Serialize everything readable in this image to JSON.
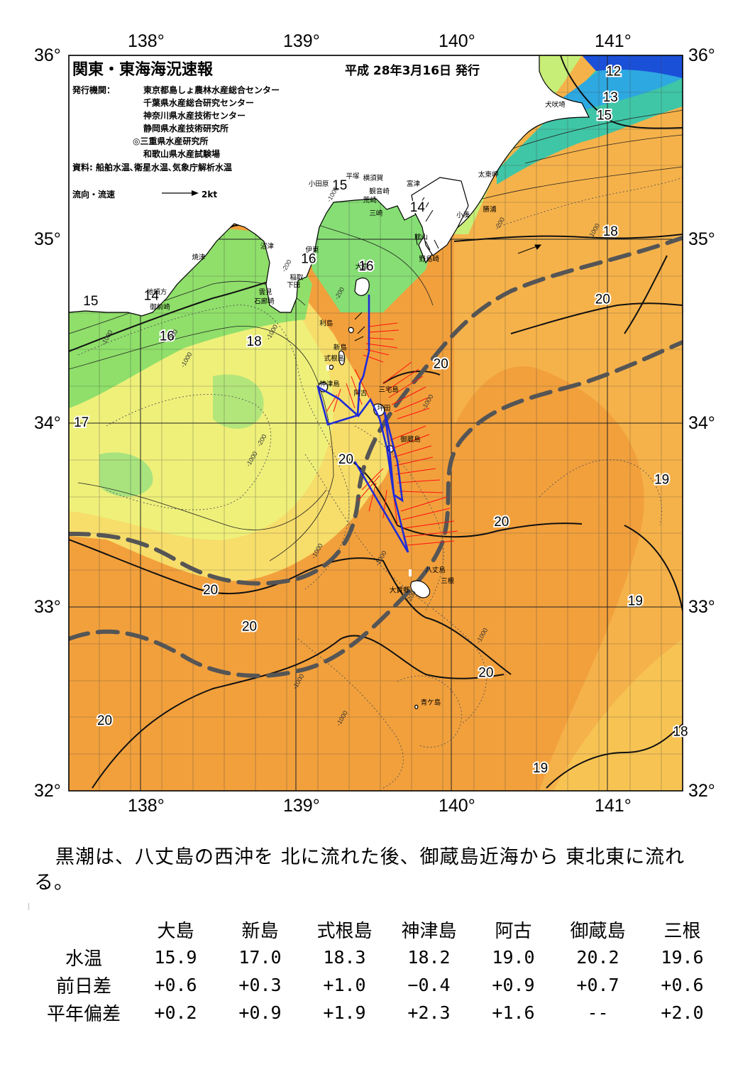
{
  "header": {
    "title": "関東・東海海況速報",
    "issue_date": "平成 28年3月16日 発行",
    "publisher_label": "発行機関：",
    "publishers": [
      "東京都島しょ農林水産総合センター",
      "千葉県水産総合研究センター",
      "神奈川県水産技術センター",
      "静岡県水産技術研究所",
      "◎三重県水産研究所",
      "和歌山県水産試験場"
    ],
    "source": "資料: 船舶水温､衛星水温､気象庁解析水温",
    "current_legend": "流向・流速",
    "current_scale": "2kt"
  },
  "axes": {
    "lon_ticks": [
      "138°",
      "139°",
      "140°",
      "141°"
    ],
    "lat_ticks": [
      "36°",
      "35°",
      "34°",
      "33°",
      "32°"
    ]
  },
  "isotherm_labels": [
    {
      "text": "12",
      "lon": 141.04,
      "lat": 35.89
    },
    {
      "text": "13",
      "lon": 141.02,
      "lat": 35.75
    },
    {
      "text": "15",
      "lon": 140.98,
      "lat": 35.65
    },
    {
      "text": "14",
      "lon": 139.78,
      "lat": 35.15
    },
    {
      "text": "15",
      "lon": 139.28,
      "lat": 35.27
    },
    {
      "text": "18",
      "lon": 141.02,
      "lat": 35.02
    },
    {
      "text": "16",
      "lon": 139.08,
      "lat": 34.87
    },
    {
      "text": "16",
      "lon": 139.45,
      "lat": 34.83
    },
    {
      "text": "15",
      "lon": 137.68,
      "lat": 34.64
    },
    {
      "text": "14",
      "lon": 138.07,
      "lat": 34.67
    },
    {
      "text": "16",
      "lon": 138.17,
      "lat": 34.45
    },
    {
      "text": "18",
      "lon": 138.73,
      "lat": 34.42
    },
    {
      "text": "20",
      "lon": 140.97,
      "lat": 34.65
    },
    {
      "text": "20",
      "lon": 139.93,
      "lat": 34.3
    },
    {
      "text": "17",
      "lon": 137.62,
      "lat": 33.98
    },
    {
      "text": "20",
      "lon": 139.32,
      "lat": 33.78
    },
    {
      "text": "19",
      "lon": 141.35,
      "lat": 33.67
    },
    {
      "text": "20",
      "lon": 140.32,
      "lat": 33.44
    },
    {
      "text": "20",
      "lon": 138.45,
      "lat": 33.07
    },
    {
      "text": "19",
      "lon": 141.18,
      "lat": 33.01
    },
    {
      "text": "20",
      "lon": 138.7,
      "lat": 32.87
    },
    {
      "text": "20",
      "lon": 140.22,
      "lat": 32.62
    },
    {
      "text": "20",
      "lon": 137.77,
      "lat": 32.36
    },
    {
      "text": "18",
      "lon": 141.47,
      "lat": 32.3
    },
    {
      "text": "19",
      "lon": 140.57,
      "lat": 32.1
    }
  ],
  "bathymetry_labels": [
    {
      "text": "-1000",
      "lon": 140.9,
      "lat": 35.0
    },
    {
      "text": "-200",
      "lon": 140.3,
      "lat": 35.05
    },
    {
      "text": "-1000",
      "lon": 139.22,
      "lat": 35.2
    },
    {
      "text": "-200",
      "lon": 138.93,
      "lat": 34.82
    },
    {
      "text": "-200",
      "lon": 138.2,
      "lat": 34.44
    },
    {
      "text": "-1000",
      "lon": 138.83,
      "lat": 34.45
    },
    {
      "text": "-1000",
      "lon": 138.28,
      "lat": 34.3
    },
    {
      "text": "-1000",
      "lon": 137.77,
      "lat": 34.42
    },
    {
      "text": "-200",
      "lon": 139.27,
      "lat": 34.67
    },
    {
      "text": "-1000",
      "lon": 139.83,
      "lat": 34.07
    },
    {
      "text": "-200",
      "lon": 138.77,
      "lat": 33.87
    },
    {
      "text": "-1000",
      "lon": 138.7,
      "lat": 33.76
    },
    {
      "text": "-1000",
      "lon": 139.12,
      "lat": 33.26
    },
    {
      "text": "-1000",
      "lon": 139.53,
      "lat": 33.22
    },
    {
      "text": "-200",
      "lon": 139.73,
      "lat": 33.02
    },
    {
      "text": "-1000",
      "lon": 140.18,
      "lat": 32.8
    },
    {
      "text": "-1000",
      "lon": 139.0,
      "lat": 32.55
    },
    {
      "text": "-1000",
      "lon": 139.28,
      "lat": 32.35
    }
  ],
  "place_names": [
    {
      "text": "犬吠埼",
      "lon": 140.6,
      "lat": 35.72
    },
    {
      "text": "小田原",
      "lon": 139.08,
      "lat": 35.29
    },
    {
      "text": "平塚",
      "lon": 139.32,
      "lat": 35.33
    },
    {
      "text": "横須賀",
      "lon": 139.43,
      "lat": 35.32
    },
    {
      "text": "観音崎",
      "lon": 139.47,
      "lat": 35.25
    },
    {
      "text": "富津",
      "lon": 139.71,
      "lat": 35.29
    },
    {
      "text": "太東岬",
      "lon": 140.17,
      "lat": 35.34
    },
    {
      "text": "荒崎",
      "lon": 139.43,
      "lat": 35.2
    },
    {
      "text": "勝浦",
      "lon": 140.2,
      "lat": 35.15
    },
    {
      "text": "三崎",
      "lon": 139.47,
      "lat": 35.13
    },
    {
      "text": "小湊",
      "lon": 140.03,
      "lat": 35.12
    },
    {
      "text": "館山",
      "lon": 139.76,
      "lat": 35.0
    },
    {
      "text": "沼津",
      "lon": 138.77,
      "lat": 34.95
    },
    {
      "text": "伊東",
      "lon": 139.06,
      "lat": 34.93
    },
    {
      "text": "焼津",
      "lon": 138.33,
      "lat": 34.89
    },
    {
      "text": "野島崎",
      "lon": 139.79,
      "lat": 34.88
    },
    {
      "text": "大島",
      "lon": 139.38,
      "lat": 34.84
    },
    {
      "text": "稲取",
      "lon": 138.96,
      "lat": 34.78
    },
    {
      "text": "下田",
      "lon": 138.94,
      "lat": 34.74
    },
    {
      "text": "雲見",
      "lon": 138.76,
      "lat": 34.7
    },
    {
      "text": "地頭方",
      "lon": 138.04,
      "lat": 34.7
    },
    {
      "text": "石廊崎",
      "lon": 138.73,
      "lat": 34.65
    },
    {
      "text": "御前崎",
      "lon": 138.06,
      "lat": 34.62
    },
    {
      "text": "利島",
      "lon": 139.15,
      "lat": 34.53
    },
    {
      "text": "新島",
      "lon": 139.24,
      "lat": 34.4
    },
    {
      "text": "式根島",
      "lon": 139.18,
      "lat": 34.34
    },
    {
      "text": "神津島",
      "lon": 139.15,
      "lat": 34.2
    },
    {
      "text": "阿古",
      "lon": 139.37,
      "lat": 34.15
    },
    {
      "text": "三宅島",
      "lon": 139.53,
      "lat": 34.17
    },
    {
      "text": "坪田",
      "lon": 139.52,
      "lat": 34.07
    },
    {
      "text": "御蔵島",
      "lon": 139.67,
      "lat": 33.9
    },
    {
      "text": "八丈島",
      "lon": 139.83,
      "lat": 33.19
    },
    {
      "text": "三根",
      "lon": 139.93,
      "lat": 33.13
    },
    {
      "text": "大賀郷",
      "lon": 139.6,
      "lat": 33.08
    },
    {
      "text": "青ケ島",
      "lon": 139.8,
      "lat": 32.47
    }
  ],
  "summary": "黒潮は、八丈島の西沖を 北に流れた後、御蔵島近海から 東北東に流れる。",
  "observations": {
    "stations": [
      "大島",
      "新島",
      "式根島",
      "神津島",
      "阿古",
      "御蔵島",
      "三根"
    ],
    "rows": [
      {
        "label": "水温",
        "values": [
          "15.9",
          "17.0",
          "18.3",
          "18.2",
          "19.0",
          "20.2",
          "19.6"
        ]
      },
      {
        "label": "前日差",
        "values": [
          "+0.6",
          "+0.3",
          "+1.0",
          "−0.4",
          "+0.9",
          "+0.7",
          "+0.6"
        ]
      },
      {
        "label": "平年偏差",
        "values": [
          "+0.2",
          "+0.9",
          "+1.9",
          "+2.3",
          "+1.6",
          "--",
          "+2.0"
        ]
      }
    ]
  },
  "colors": {
    "warm_orange": "#f2a03c",
    "kuroshio_axis": "#555555",
    "ship_track": "#1f2bd6",
    "current_vectors": "#ff1010",
    "land": "#ffffff"
  }
}
